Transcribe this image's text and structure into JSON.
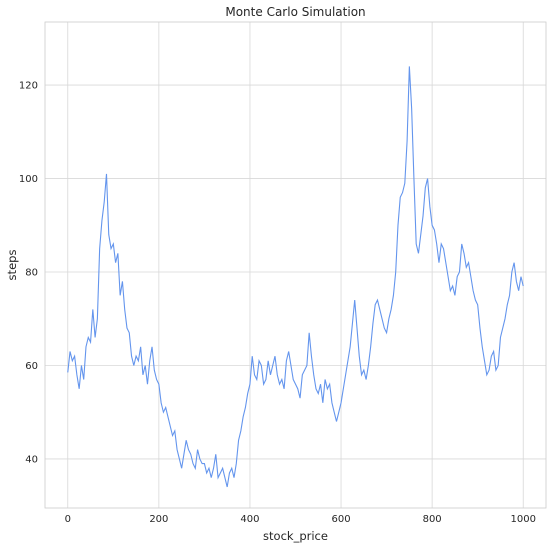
{
  "chart_data": {
    "type": "line",
    "title": "Monte Carlo Simulation",
    "xlabel": "stock_price",
    "ylabel": "steps",
    "xlim": [
      -50,
      1050
    ],
    "ylim": [
      29.5,
      133.5
    ],
    "x_ticks": [
      0,
      200,
      400,
      600,
      800,
      1000
    ],
    "y_ticks": [
      40,
      60,
      80,
      100,
      120
    ],
    "grid": true,
    "legend": "none",
    "series": [
      {
        "color": "#6495ed",
        "x": [
          0,
          5,
          10,
          15,
          20,
          25,
          30,
          35,
          40,
          45,
          50,
          55,
          60,
          65,
          70,
          75,
          80,
          85,
          90,
          95,
          100,
          105,
          110,
          115,
          120,
          125,
          130,
          135,
          140,
          145,
          150,
          155,
          160,
          165,
          170,
          175,
          180,
          185,
          190,
          195,
          200,
          205,
          210,
          215,
          220,
          225,
          230,
          235,
          240,
          245,
          250,
          255,
          260,
          265,
          270,
          275,
          280,
          285,
          290,
          295,
          300,
          305,
          310,
          315,
          320,
          325,
          330,
          335,
          340,
          345,
          350,
          355,
          360,
          365,
          370,
          375,
          380,
          385,
          390,
          395,
          400,
          405,
          410,
          415,
          420,
          425,
          430,
          435,
          440,
          445,
          450,
          455,
          460,
          465,
          470,
          475,
          480,
          485,
          490,
          495,
          500,
          505,
          510,
          515,
          520,
          525,
          530,
          535,
          540,
          545,
          550,
          555,
          560,
          565,
          570,
          575,
          580,
          585,
          590,
          595,
          600,
          605,
          610,
          615,
          620,
          625,
          630,
          635,
          640,
          645,
          650,
          655,
          660,
          665,
          670,
          675,
          680,
          685,
          690,
          695,
          700,
          705,
          710,
          715,
          720,
          725,
          730,
          735,
          740,
          745,
          750,
          755,
          760,
          765,
          770,
          775,
          780,
          785,
          790,
          795,
          800,
          805,
          810,
          815,
          820,
          825,
          830,
          835,
          840,
          845,
          850,
          855,
          860,
          865,
          870,
          875,
          880,
          885,
          890,
          895,
          900,
          905,
          910,
          915,
          920,
          925,
          930,
          935,
          940,
          945,
          950,
          955,
          960,
          965,
          970,
          975,
          980,
          985,
          990,
          995,
          1000
        ],
        "values": [
          58.5,
          63,
          61,
          62,
          58,
          55,
          60,
          57,
          64,
          66,
          65,
          72,
          66,
          70,
          85,
          91,
          95,
          101,
          88,
          85,
          86,
          82,
          84,
          75,
          78,
          72,
          68,
          67,
          62,
          60,
          62,
          61,
          64,
          58,
          60,
          56,
          61,
          64,
          59,
          57,
          56,
          52,
          50,
          51,
          49,
          47,
          45,
          46,
          42,
          40,
          38,
          41,
          44,
          42,
          41,
          39,
          38,
          42,
          40,
          39,
          39,
          37,
          38,
          36,
          38,
          41,
          36,
          37,
          38,
          36,
          34,
          37,
          38,
          36,
          39,
          44,
          46,
          49,
          51,
          54,
          56,
          62,
          58,
          57,
          61,
          60,
          56,
          57,
          61,
          58,
          60,
          62,
          58,
          56,
          57,
          55,
          61,
          63,
          60,
          57,
          56,
          55,
          53,
          58,
          59,
          60,
          67,
          62,
          58,
          55,
          54,
          56,
          52,
          57,
          55,
          56,
          52,
          50,
          48,
          50,
          52,
          55,
          58,
          61,
          64,
          69,
          74,
          68,
          62,
          58,
          59,
          57,
          60,
          64,
          69,
          73,
          74,
          72,
          70,
          68,
          67,
          70,
          72,
          75,
          80,
          90,
          96,
          97,
          99,
          108,
          124,
          115,
          100,
          86,
          84,
          88,
          92,
          98,
          100,
          94,
          90,
          89,
          86,
          82,
          86,
          85,
          82,
          79,
          76,
          77,
          75,
          79,
          80,
          86,
          84,
          81,
          82,
          79,
          76,
          74,
          73,
          68,
          64,
          61,
          58,
          59,
          62,
          63,
          59,
          60,
          66,
          68,
          70,
          73,
          75,
          80,
          82,
          78,
          76,
          79,
          77
        ]
      }
    ]
  }
}
